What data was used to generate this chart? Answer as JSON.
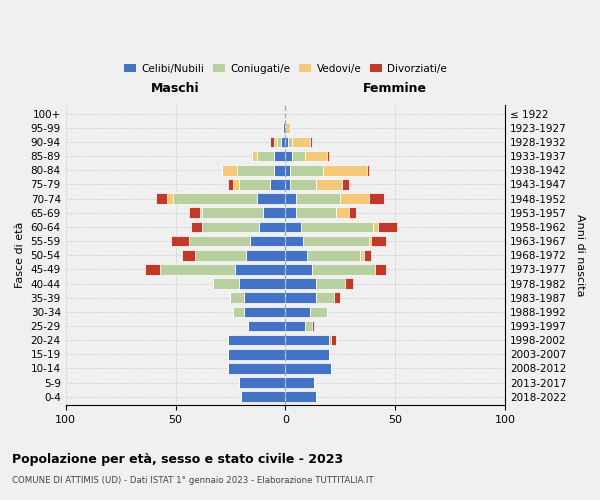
{
  "age_groups": [
    "0-4",
    "5-9",
    "10-14",
    "15-19",
    "20-24",
    "25-29",
    "30-34",
    "35-39",
    "40-44",
    "45-49",
    "50-54",
    "55-59",
    "60-64",
    "65-69",
    "70-74",
    "75-79",
    "80-84",
    "85-89",
    "90-94",
    "95-99",
    "100+"
  ],
  "birth_years": [
    "2018-2022",
    "2013-2017",
    "2008-2012",
    "2003-2007",
    "1998-2002",
    "1993-1997",
    "1988-1992",
    "1983-1987",
    "1978-1982",
    "1973-1977",
    "1968-1972",
    "1963-1967",
    "1958-1962",
    "1953-1957",
    "1948-1952",
    "1943-1947",
    "1938-1942",
    "1933-1937",
    "1928-1932",
    "1923-1927",
    "≤ 1922"
  ],
  "maschi": {
    "celibi": [
      20,
      21,
      26,
      26,
      26,
      17,
      19,
      19,
      21,
      23,
      18,
      16,
      12,
      10,
      13,
      7,
      5,
      5,
      2,
      1,
      0
    ],
    "coniugati": [
      0,
      0,
      0,
      0,
      0,
      0,
      5,
      6,
      12,
      34,
      23,
      28,
      26,
      28,
      38,
      14,
      17,
      8,
      2,
      0,
      0
    ],
    "vedovi": [
      0,
      0,
      0,
      0,
      0,
      0,
      0,
      0,
      0,
      0,
      0,
      0,
      0,
      1,
      3,
      3,
      7,
      2,
      1,
      0,
      0
    ],
    "divorziati": [
      0,
      0,
      0,
      0,
      0,
      0,
      0,
      0,
      0,
      7,
      6,
      8,
      5,
      5,
      5,
      2,
      0,
      0,
      2,
      0,
      0
    ]
  },
  "femmine": {
    "nubili": [
      14,
      13,
      21,
      20,
      20,
      9,
      11,
      14,
      14,
      12,
      10,
      8,
      7,
      5,
      5,
      2,
      2,
      3,
      1,
      0,
      0
    ],
    "coniugate": [
      0,
      0,
      0,
      0,
      1,
      3,
      8,
      8,
      13,
      29,
      24,
      30,
      33,
      18,
      20,
      12,
      15,
      6,
      2,
      0,
      0
    ],
    "vedove": [
      0,
      0,
      0,
      0,
      0,
      0,
      0,
      0,
      0,
      0,
      2,
      1,
      2,
      6,
      13,
      12,
      20,
      10,
      8,
      2,
      0
    ],
    "divorziate": [
      0,
      0,
      0,
      0,
      2,
      1,
      0,
      3,
      4,
      5,
      3,
      7,
      9,
      3,
      7,
      3,
      1,
      1,
      1,
      0,
      0
    ]
  },
  "colors": {
    "celibi": "#4472c4",
    "coniugati": "#b8cfa0",
    "vedovi": "#f5c97a",
    "divorziati": "#c0392b"
  },
  "xlim": 100,
  "title": "Popolazione per età, sesso e stato civile - 2023",
  "subtitle": "COMUNE DI ATTIMIS (UD) - Dati ISTAT 1° gennaio 2023 - Elaborazione TUTTITALIA.IT",
  "ylabel_left": "Fasce di età",
  "ylabel_right": "Anni di nascita",
  "xlabel_left": "Maschi",
  "xlabel_right": "Femmine",
  "bg_color": "#f0f0f0",
  "grid_color": "#cccccc"
}
